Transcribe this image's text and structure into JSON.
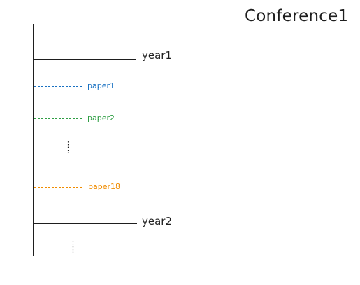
{
  "root": {
    "label": "Conference1"
  },
  "years": [
    {
      "label": "year1"
    },
    {
      "label": "year2"
    }
  ],
  "papers": [
    {
      "label": "paper1",
      "color": "#1971c2"
    },
    {
      "label": "paper2",
      "color": "#2f9e44"
    },
    {
      "label": "paper18",
      "color": "#f08c00"
    }
  ],
  "ellipsis_marks": [
    {
      "glyph": "⋮"
    },
    {
      "glyph": "⋮"
    },
    {
      "glyph": "⋮"
    },
    {
      "glyph": "⋮"
    }
  ]
}
